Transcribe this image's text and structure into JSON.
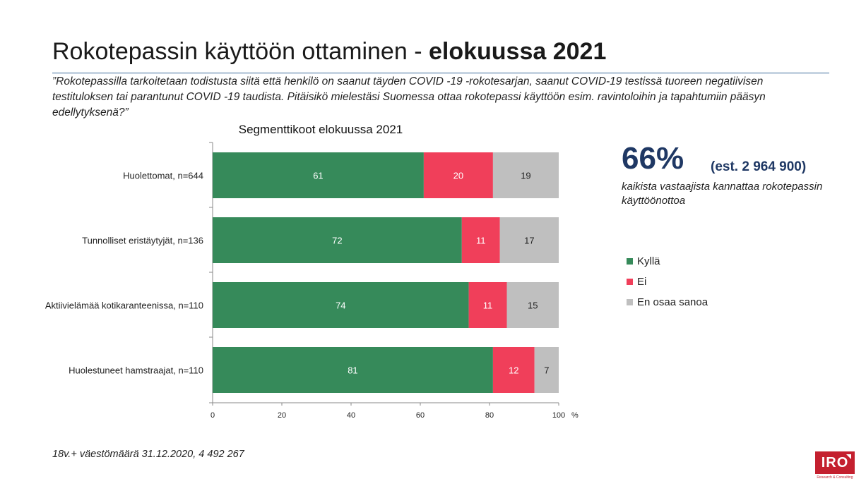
{
  "page": {
    "title_main": "Rokotepassin käyttöön ottaminen - ",
    "title_bold": "elokuussa 2021",
    "question": "”Rokotepassilla tarkoitetaan todistusta siitä että henkilö on saanut täyden COVID -19 -rokotesarjan, saanut COVID-19 testissä tuoreen negatiivisen testituloksen tai parantunut COVID -19 taudista. Pitäisikö mielestäsi Suomessa ottaa rokotepassi käyttöön esim. ravintoloihin ja tapahtumiin pääsyn edellytyksenä?”",
    "highlight_value": "66%",
    "highlight_estimate": "(est. 2 964 900)",
    "highlight_text": "kaikista vastaajista kannattaa rokotepassin käyttöönottoa",
    "footnote": "18v.+ väestömäärä 31.12.2020, 4 492 267",
    "logo_text": "IRO",
    "logo_subtext": "Research & Consulting"
  },
  "colors": {
    "kylla": "#368a5a",
    "ei": "#f03f5a",
    "eos": "#bfbfbf"
  },
  "chart_data": {
    "type": "bar",
    "orientation": "horizontal",
    "stacked": true,
    "title": "Segmenttikoot elokuussa 2021",
    "categories": [
      "Huolettomat, n=644",
      "Tunnolliset eristäytyjät, n=136",
      "Aktiivielämää kotikaranteenissa, n=110",
      "Huolestuneet hamstraajat, n=110"
    ],
    "series": [
      {
        "name": "Kyllä",
        "color": "#368a5a",
        "values": [
          61,
          72,
          74,
          81
        ]
      },
      {
        "name": "Ei",
        "color": "#f03f5a",
        "values": [
          20,
          11,
          11,
          12
        ]
      },
      {
        "name": "En osaa sanoa",
        "color": "#bfbfbf",
        "values": [
          19,
          17,
          15,
          7
        ]
      }
    ],
    "xlim": [
      0,
      100
    ],
    "xticks": [
      0,
      20,
      40,
      60,
      80,
      100
    ],
    "x_unit": "%",
    "legend_position": "right"
  }
}
